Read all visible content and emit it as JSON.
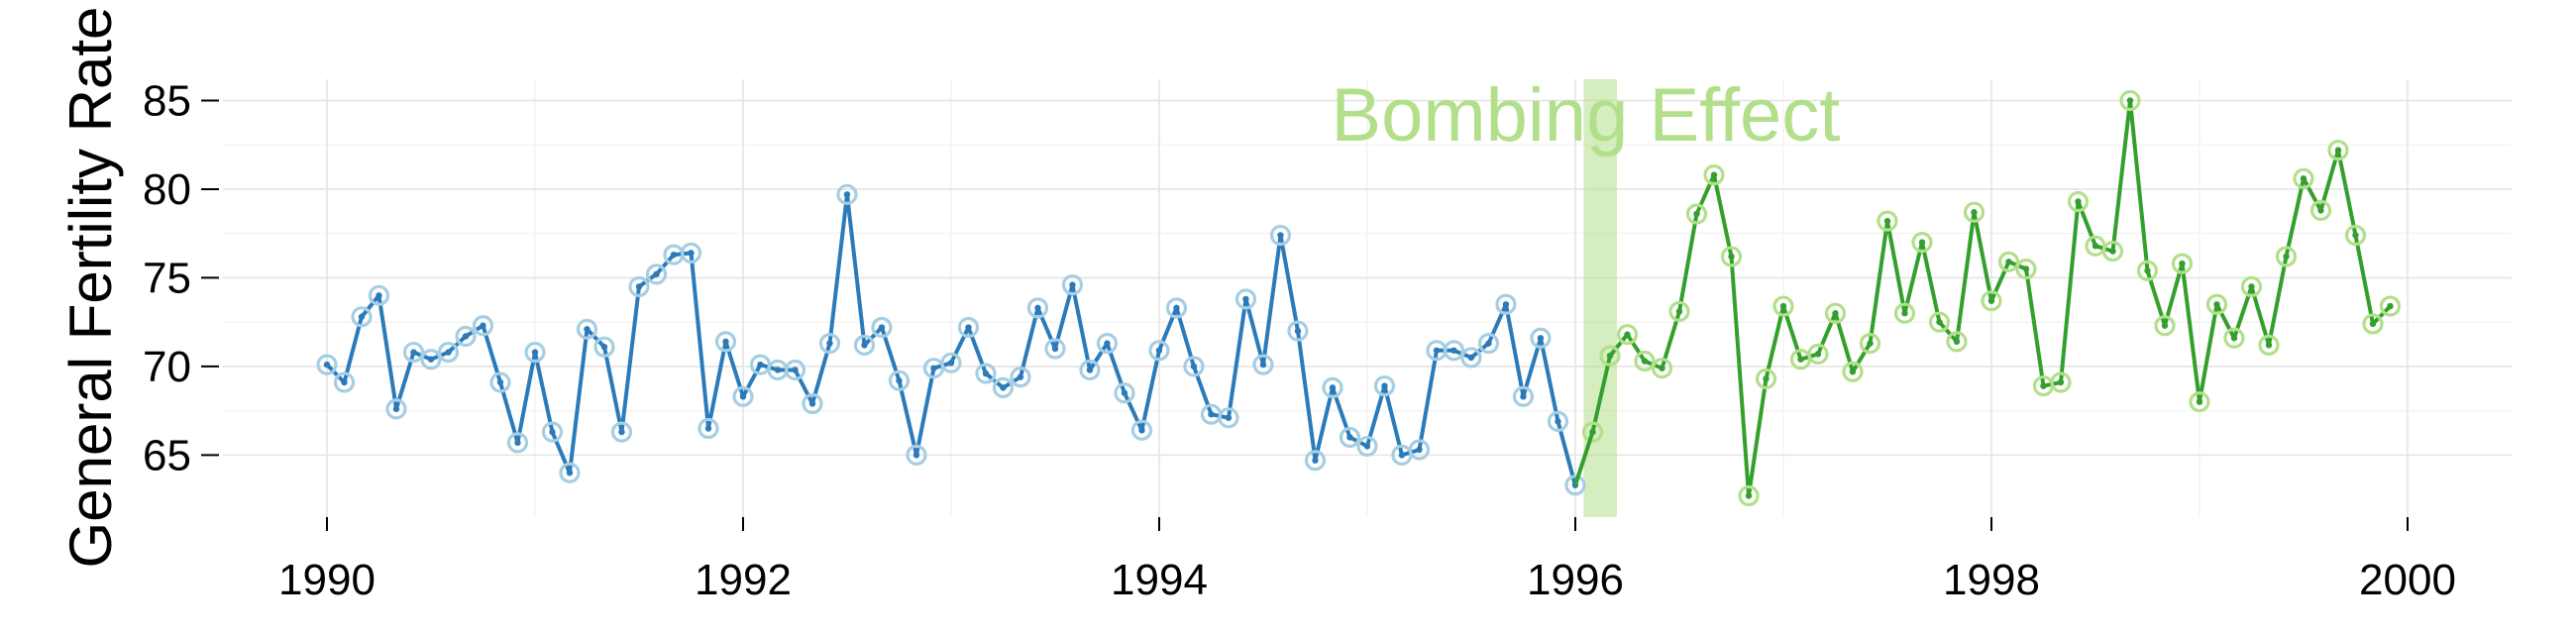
{
  "chart_data": {
    "type": "line",
    "title": "",
    "xlabel": "",
    "ylabel": "General Fertility Rate",
    "xlim": [
      1989.5,
      2000.5
    ],
    "ylim": [
      61.5,
      86.2
    ],
    "x_ticks": [
      1990,
      1992,
      1994,
      1996,
      1998,
      2000
    ],
    "y_ticks": [
      65,
      70,
      75,
      80,
      85
    ],
    "grid": true,
    "legend": "none",
    "colors": {
      "pre_line": "#2b7bba",
      "pre_marker": "#a6cee3",
      "post_line": "#33a02c",
      "post_marker": "#b2df8a",
      "band": "#b2df8a",
      "annotation": "#b2df8a"
    },
    "annotation": {
      "text": "Bombing Effect",
      "band_x": [
        1996.04,
        1996.2
      ]
    },
    "series": [
      {
        "start": 1990.0,
        "step": 0.08333,
        "values": [
          70.1,
          69.1,
          72.8,
          74.0,
          67.6,
          70.8,
          70.4,
          70.8,
          71.7,
          72.3,
          69.1,
          65.7,
          70.8,
          66.3,
          64.0,
          72.1,
          71.1,
          66.3,
          74.5,
          75.2,
          76.3,
          76.4,
          66.5,
          71.4,
          68.3,
          70.1,
          69.8,
          69.8,
          67.9,
          71.3,
          79.7,
          71.2,
          72.2,
          69.2,
          65.0,
          69.9,
          70.2,
          72.2,
          69.6,
          68.8,
          69.4,
          73.3,
          71.0,
          74.6,
          69.8,
          71.3,
          68.5,
          66.4,
          70.9,
          73.3,
          70.0,
          67.3,
          67.1,
          73.8,
          70.1,
          77.4,
          72.0,
          64.7,
          68.8,
          66.0,
          65.5,
          68.9,
          65.0,
          65.3,
          70.9,
          70.9,
          70.5,
          71.3,
          73.5,
          68.3,
          71.6,
          66.9,
          63.3
        ]
      },
      {
        "start": 1996.08333,
        "step": 0.08333,
        "values": [
          66.3,
          70.6,
          71.8,
          70.3,
          69.9,
          73.1,
          78.6,
          80.8,
          76.2,
          62.7,
          69.3,
          73.4,
          70.4,
          70.7,
          73.0,
          69.7,
          71.3,
          78.2,
          73.0,
          77.0,
          72.5,
          71.4,
          78.7,
          73.7,
          75.9,
          75.5,
          68.9,
          69.1,
          79.3,
          76.8,
          76.5,
          85.0,
          75.4,
          72.3,
          75.8,
          68.0,
          73.5,
          71.6,
          74.5,
          71.2,
          76.2,
          80.6,
          78.8,
          82.2,
          77.4,
          72.4,
          73.4
        ]
      }
    ]
  }
}
